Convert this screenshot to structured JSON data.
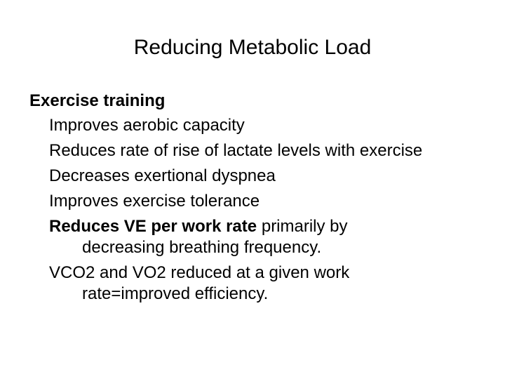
{
  "title": "Reducing Metabolic Load",
  "section": {
    "heading": "Exercise training",
    "items": [
      {
        "text": "Improves aerobic capacity"
      },
      {
        "text": "Reduces rate of rise of lactate levels with exercise"
      },
      {
        "text": "Decreases exertional dyspnea"
      },
      {
        "text": "Improves exercise tolerance"
      },
      {
        "bold": "Reduces VE per work rate",
        "text": "primarily by decreasing breathing frequency."
      },
      {
        "text": "VCO2 and VO2 reduced at a given work rate=improved efficiency."
      }
    ]
  }
}
